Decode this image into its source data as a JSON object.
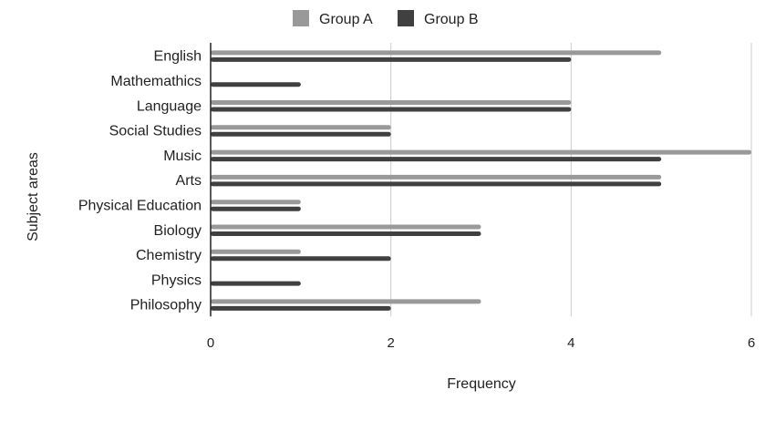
{
  "chart_data": {
    "type": "bar",
    "orientation": "horizontal",
    "categories": [
      "English",
      "Mathemathics",
      "Language",
      "Social Studies",
      "Music",
      "Arts",
      "Physical Education",
      "Biology",
      "Chemistry",
      "Physics",
      "Philosophy"
    ],
    "series": [
      {
        "name": "Group A",
        "color": "#999999",
        "values": [
          5,
          0,
          4,
          2,
          6,
          5,
          1,
          3,
          1,
          0,
          3
        ]
      },
      {
        "name": "Group B",
        "color": "#404040",
        "values": [
          4,
          1,
          4,
          2,
          5,
          5,
          1,
          3,
          2,
          1,
          2
        ]
      }
    ],
    "xlabel": "Frequency",
    "ylabel": "Subject areas",
    "xlim": [
      0,
      6
    ],
    "xticks": [
      0,
      2,
      4,
      6
    ],
    "grid": true,
    "legend_position": "top"
  }
}
